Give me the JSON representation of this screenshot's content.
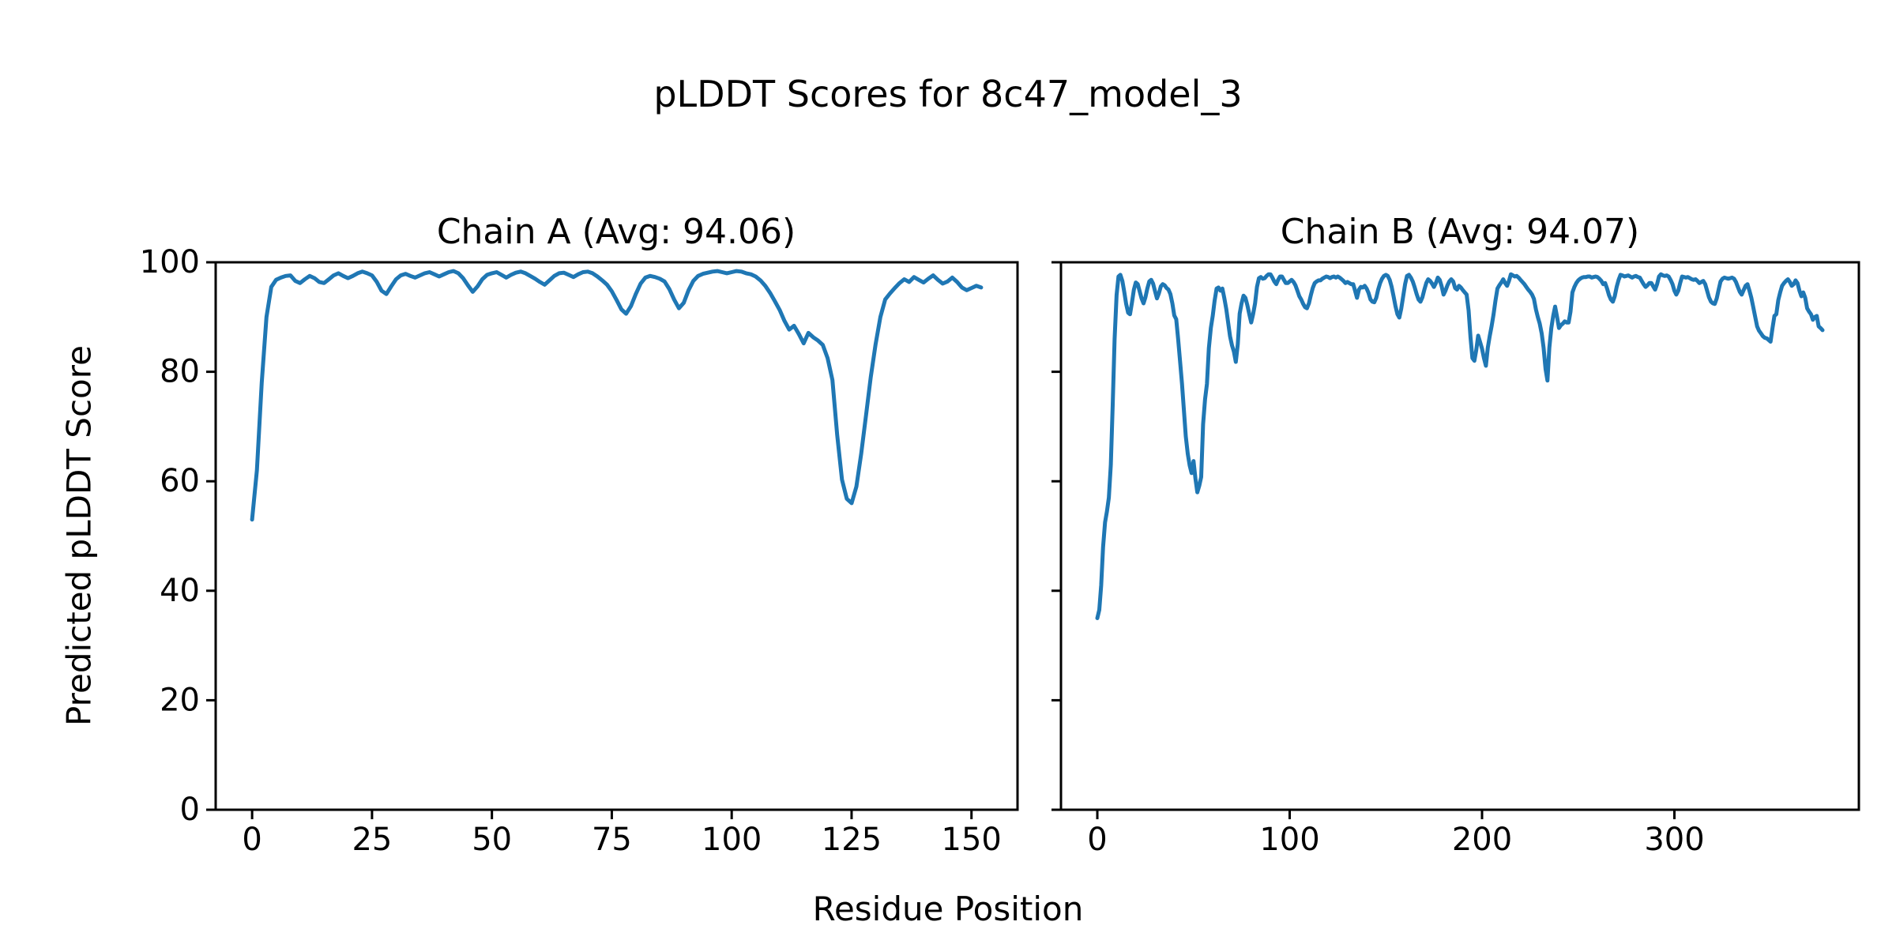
{
  "figure": {
    "title": "pLDDT Scores for 8c47_model_3",
    "xlabel": "Residue Position",
    "ylabel": "Predicted pLDDT Score",
    "background_color": "#ffffff",
    "text_color": "#000000"
  },
  "chart_data": [
    {
      "type": "line",
      "title": "Chain A (Avg: 94.06)",
      "chain": "A",
      "average_plddt": 94.06,
      "line_color": "#1f77b4",
      "x_ticks": [
        0,
        25,
        50,
        75,
        100,
        125,
        150
      ],
      "y_ticks": [
        0,
        20,
        40,
        60,
        80,
        100
      ],
      "show_y_tick_labels": true,
      "xlim": [
        -7.6,
        159.6
      ],
      "ylim": [
        0,
        100
      ],
      "grid": false,
      "legend": "none",
      "x_start": 0,
      "values": [
        53.0,
        62.0,
        78.0,
        90.0,
        95.5,
        96.8,
        97.2,
        97.5,
        97.6,
        96.6,
        96.2,
        96.9,
        97.5,
        97.1,
        96.4,
        96.2,
        96.9,
        97.6,
        98.0,
        97.5,
        97.1,
        97.5,
        98.0,
        98.3,
        98.0,
        97.6,
        96.4,
        94.8,
        94.2,
        95.6,
        96.9,
        97.6,
        97.9,
        97.5,
        97.2,
        97.6,
        98.0,
        98.2,
        97.8,
        97.4,
        97.8,
        98.2,
        98.4,
        98.0,
        97.1,
        95.8,
        94.6,
        95.6,
        96.9,
        97.7,
        98.0,
        98.2,
        97.7,
        97.2,
        97.7,
        98.1,
        98.3,
        98.0,
        97.5,
        97.0,
        96.4,
        95.9,
        96.7,
        97.5,
        98.0,
        98.1,
        97.7,
        97.3,
        97.8,
        98.2,
        98.3,
        98.0,
        97.4,
        96.7,
        95.9,
        94.7,
        93.1,
        91.4,
        90.6,
        92.0,
        94.2,
        96.1,
        97.2,
        97.5,
        97.3,
        97.0,
        96.5,
        95.1,
        93.2,
        91.6,
        92.6,
        94.9,
        96.6,
        97.5,
        97.9,
        98.1,
        98.3,
        98.4,
        98.2,
        98.0,
        98.2,
        98.4,
        98.3,
        98.0,
        97.8,
        97.4,
        96.7,
        95.7,
        94.4,
        92.9,
        91.3,
        89.3,
        87.7,
        88.4,
        86.9,
        85.2,
        87.1,
        86.3,
        85.7,
        84.9,
        82.5,
        78.5,
        68.5,
        60.3,
        56.8,
        56.0,
        59.0,
        65.0,
        72.0,
        79.0,
        85.0,
        90.0,
        93.2,
        94.3,
        95.3,
        96.2,
        96.9,
        96.4,
        97.3,
        96.8,
        96.3,
        97.0,
        97.6,
        96.8,
        96.1,
        96.5,
        97.2,
        96.4,
        95.4,
        94.9,
        95.3,
        95.7,
        95.4
      ]
    },
    {
      "type": "line",
      "title": "Chain B (Avg: 94.07)",
      "chain": "B",
      "average_plddt": 94.07,
      "line_color": "#1f77b4",
      "x_ticks": [
        0,
        100,
        200,
        300
      ],
      "y_ticks": [
        0,
        20,
        40,
        60,
        80,
        100
      ],
      "show_y_tick_labels": false,
      "xlim": [
        -18.9,
        395.9
      ],
      "ylim": [
        0,
        100
      ],
      "grid": false,
      "legend": "none",
      "x_start": 0,
      "values": [
        35.0,
        36.5,
        41.0,
        48.0,
        52.5,
        54.5,
        57.0,
        63.0,
        74.0,
        86.0,
        94.0,
        97.4,
        97.7,
        96.6,
        94.6,
        92.4,
        90.8,
        90.5,
        92.6,
        95.0,
        96.3,
        96.0,
        94.7,
        93.4,
        92.5,
        93.6,
        95.2,
        96.5,
        96.8,
        96.1,
        94.7,
        93.4,
        94.3,
        95.6,
        96.0,
        95.8,
        95.3,
        95.0,
        94.2,
        92.5,
        90.3,
        89.6,
        86.0,
        82.0,
        77.8,
        73.0,
        68.2,
        65.0,
        62.9,
        61.5,
        63.7,
        60.5,
        58.0,
        59.2,
        60.8,
        70.4,
        75.0,
        77.8,
        84.3,
        88.0,
        90.2,
        93.0,
        95.2,
        95.4,
        94.8,
        95.2,
        93.5,
        91.5,
        89.0,
        86.5,
        84.8,
        83.7,
        81.8,
        85.0,
        90.6,
        92.5,
        93.9,
        93.5,
        92.2,
        90.5,
        89.0,
        90.5,
        92.5,
        95.5,
        97.1,
        97.3,
        97.0,
        97.1,
        97.5,
        97.8,
        97.8,
        97.2,
        96.5,
        96.0,
        96.8,
        97.4,
        97.4,
        96.8,
        96.2,
        96.2,
        96.5,
        96.8,
        96.4,
        95.8,
        94.8,
        93.8,
        93.2,
        92.4,
        91.8,
        91.6,
        92.5,
        94.0,
        95.3,
        96.2,
        96.5,
        96.7,
        96.7,
        97.0,
        97.2,
        97.4,
        97.3,
        97.1,
        97.3,
        97.4,
        97.2,
        97.4,
        97.2,
        96.9,
        96.6,
        96.2,
        96.4,
        96.2,
        96.0,
        96.0,
        94.8,
        93.5,
        95.0,
        95.5,
        95.4,
        95.7,
        95.2,
        94.4,
        93.2,
        92.8,
        92.7,
        93.5,
        95.0,
        96.2,
        97.0,
        97.5,
        97.7,
        97.5,
        96.8,
        95.5,
        93.8,
        92.0,
        90.5,
        89.9,
        91.5,
        93.8,
        96.0,
        97.5,
        97.7,
        97.2,
        96.5,
        95.4,
        94.2,
        93.2,
        92.8,
        93.6,
        95.0,
        96.2,
        96.9,
        96.6,
        96.1,
        95.5,
        96.2,
        97.2,
        96.8,
        95.6,
        94.1,
        94.8,
        95.8,
        96.5,
        96.9,
        96.5,
        95.3,
        95.0,
        95.7,
        95.4,
        94.9,
        94.5,
        94.1,
        91.2,
        86.3,
        82.5,
        82.0,
        84.0,
        86.6,
        85.4,
        84.2,
        82.5,
        81.1,
        84.4,
        86.5,
        88.4,
        90.5,
        93.0,
        95.2,
        95.8,
        96.3,
        96.9,
        96.2,
        95.7,
        96.6,
        97.8,
        97.6,
        97.4,
        97.5,
        97.2,
        96.8,
        96.4,
        96.0,
        95.5,
        95.0,
        94.6,
        94.1,
        93.3,
        91.4,
        90.0,
        88.8,
        87.0,
        84.4,
        80.5,
        78.4,
        84.4,
        88.0,
        90.2,
        91.9,
        90.0,
        88.0,
        88.5,
        88.8,
        89.2,
        89.0,
        89.0,
        91.0,
        94.5,
        95.5,
        96.2,
        96.7,
        97.0,
        97.2,
        97.3,
        97.3,
        97.4,
        97.4,
        97.2,
        97.3,
        97.4,
        97.3,
        97.0,
        96.6,
        96.0,
        96.2,
        95.2,
        94.0,
        93.2,
        92.8,
        93.8,
        95.5,
        96.8,
        97.7,
        97.6,
        97.4,
        97.5,
        97.6,
        97.4,
        97.2,
        97.4,
        97.5,
        97.3,
        97.2,
        96.6,
        96.0,
        95.5,
        95.8,
        96.2,
        96.2,
        95.6,
        95.0,
        96.0,
        97.4,
        97.8,
        97.6,
        97.5,
        97.6,
        97.4,
        96.8,
        96.0,
        94.8,
        94.1,
        94.8,
        96.2,
        97.4,
        97.3,
        97.2,
        97.3,
        97.1,
        96.9,
        96.8,
        96.9,
        96.6,
        96.2,
        96.4,
        96.6,
        96.0,
        94.8,
        93.6,
        92.8,
        92.5,
        92.4,
        93.4,
        95.0,
        96.5,
        97.0,
        97.2,
        97.1,
        97.0,
        97.1,
        97.2,
        97.0,
        96.4,
        95.5,
        94.6,
        94.1,
        94.9,
        95.7,
        96.0,
        94.8,
        93.5,
        91.8,
        90.0,
        88.3,
        87.5,
        87.0,
        86.5,
        86.2,
        86.1,
        85.8,
        85.5,
        88.0,
        90.2,
        90.5,
        93.1,
        94.5,
        95.7,
        96.2,
        96.6,
        96.9,
        96.4,
        95.7,
        96.0,
        96.7,
        96.2,
        94.8,
        93.8,
        94.5,
        93.5,
        91.6,
        91.0,
        90.5,
        89.5,
        90.0,
        90.2,
        88.3,
        88.0,
        87.6
      ]
    }
  ]
}
